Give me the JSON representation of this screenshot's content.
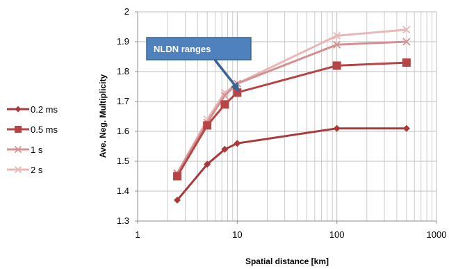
{
  "chart_data": {
    "type": "line",
    "title": "",
    "xlabel": "Spatial distance [km]",
    "ylabel": "Ave. Neg. Multiplicity",
    "xscale": "log",
    "xlim": [
      1,
      1000
    ],
    "ylim": [
      1.3,
      2.0
    ],
    "x_ticks": [
      "1",
      "10",
      "100",
      "1000"
    ],
    "y_ticks": [
      "1.3",
      "1.4",
      "1.5",
      "1.6",
      "1.7",
      "1.8",
      "1.9",
      "2"
    ],
    "grid": true,
    "legend_position": "left",
    "annotation": "NLDN ranges",
    "x": [
      2.5,
      5,
      7.5,
      10,
      100,
      500
    ],
    "series": [
      {
        "name": "0.2 ms",
        "color": "#a83a3a",
        "marker": "diamond",
        "values": [
          1.37,
          1.49,
          1.54,
          1.56,
          1.61,
          1.61
        ]
      },
      {
        "name": "0.5 ms",
        "color": "#b84545",
        "marker": "square",
        "values": [
          1.45,
          1.62,
          1.69,
          1.73,
          1.82,
          1.83
        ]
      },
      {
        "name": "1 s",
        "color": "#d79090",
        "marker": "x",
        "values": [
          1.46,
          1.63,
          1.72,
          1.76,
          1.89,
          1.9
        ]
      },
      {
        "name": "2 s",
        "color": "#e8b8b8",
        "marker": "x",
        "values": [
          1.46,
          1.64,
          1.73,
          1.76,
          1.92,
          1.94
        ]
      }
    ]
  }
}
